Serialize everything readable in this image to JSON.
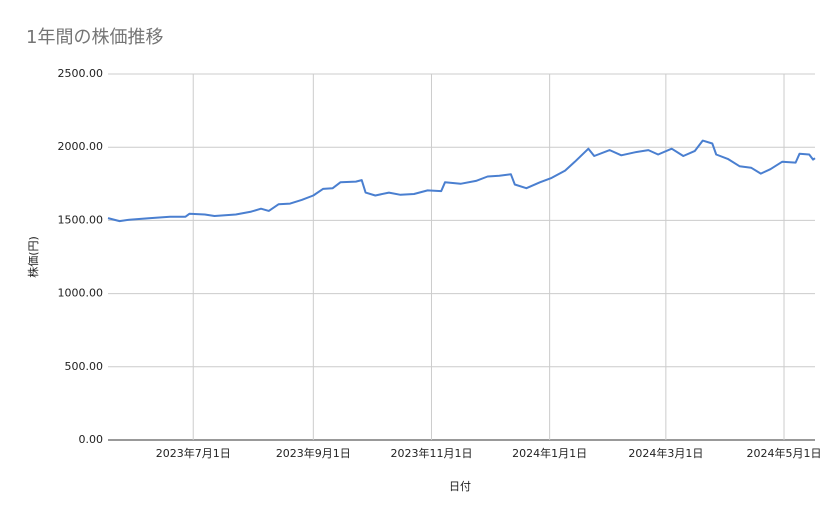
{
  "chart_data": {
    "type": "line",
    "title": "1年間の株価推移",
    "x_label": "日付",
    "y_label": "株価(円)",
    "color": "#4a7fd0",
    "grid": true,
    "x": [
      "2023-05-18",
      "2023-05-24",
      "2023-05-29",
      "2023-06-08",
      "2023-06-19",
      "2023-06-27",
      "2023-06-29",
      "2023-07-07",
      "2023-07-12",
      "2023-07-23",
      "2023-07-31",
      "2023-08-05",
      "2023-08-09",
      "2023-08-14",
      "2023-08-20",
      "2023-08-26",
      "2023-09-01",
      "2023-09-06",
      "2023-09-11",
      "2023-09-15",
      "2023-09-23",
      "2023-09-26",
      "2023-09-28",
      "2023-10-03",
      "2023-10-10",
      "2023-10-16",
      "2023-10-23",
      "2023-10-30",
      "2023-11-06",
      "2023-11-08",
      "2023-11-16",
      "2023-11-24",
      "2023-11-30",
      "2023-12-06",
      "2023-12-12",
      "2023-12-14",
      "2023-12-20",
      "2023-12-27",
      "2024-01-02",
      "2024-01-09",
      "2024-01-14",
      "2024-01-21",
      "2024-01-24",
      "2024-02-01",
      "2024-02-07",
      "2024-02-14",
      "2024-02-21",
      "2024-02-26",
      "2024-03-04",
      "2024-03-10",
      "2024-03-16",
      "2024-03-20",
      "2024-03-25",
      "2024-03-27",
      "2024-04-02",
      "2024-04-08",
      "2024-04-14",
      "2024-04-19",
      "2024-04-24",
      "2024-04-30",
      "2024-05-07",
      "2024-05-09",
      "2024-05-14",
      "2024-05-16",
      "2024-05-17"
    ],
    "values": [
      1516,
      1495,
      1505,
      1515,
      1525,
      1525,
      1545,
      1540,
      1530,
      1540,
      1560,
      1580,
      1565,
      1610,
      1615,
      1640,
      1670,
      1715,
      1720,
      1760,
      1765,
      1775,
      1690,
      1670,
      1690,
      1675,
      1680,
      1705,
      1700,
      1760,
      1750,
      1770,
      1800,
      1805,
      1815,
      1745,
      1720,
      1760,
      1790,
      1840,
      1900,
      1990,
      1940,
      1980,
      1945,
      1965,
      1980,
      1950,
      1990,
      1940,
      1975,
      2045,
      2025,
      1950,
      1920,
      1870,
      1860,
      1820,
      1850,
      1900,
      1895,
      1955,
      1950,
      1915,
      1925
    ],
    "xlim": [
      "2023-05-18",
      "2024-05-17"
    ],
    "xticks": [
      {
        "value": "2023-07-01",
        "label": "2023年7月1日"
      },
      {
        "value": "2023-09-01",
        "label": "2023年9月1日"
      },
      {
        "value": "2023-11-01",
        "label": "2023年11月1日"
      },
      {
        "value": "2024-01-01",
        "label": "2024年1月1日"
      },
      {
        "value": "2024-03-01",
        "label": "2024年3月1日"
      },
      {
        "value": "2024-05-01",
        "label": "2024年5月1日"
      }
    ],
    "ylim": [
      0,
      2500
    ],
    "yticks": [
      {
        "value": 0,
        "label": "0.00"
      },
      {
        "value": 500,
        "label": "500.00"
      },
      {
        "value": 1000,
        "label": "1000.00"
      },
      {
        "value": 1500,
        "label": "1500.00"
      },
      {
        "value": 2000,
        "label": "2000.00"
      },
      {
        "value": 2500,
        "label": "2500.00"
      }
    ]
  }
}
